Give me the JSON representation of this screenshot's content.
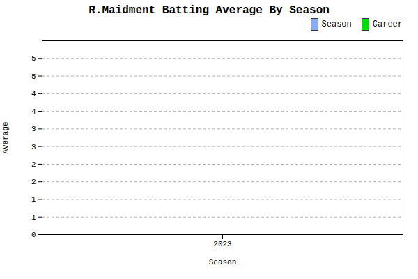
{
  "chart_data": {
    "type": "bar",
    "title": "R.Maidment Batting Average By Season",
    "xlabel": "Season",
    "ylabel": "Average",
    "series": [
      {
        "name": "Season",
        "color": "#88aaff"
      },
      {
        "name": "Career",
        "color": "#00dd00"
      }
    ],
    "xlim": [
      2022.6,
      2023.4
    ],
    "xticks": [
      2023
    ],
    "ylim": [
      0,
      5.5
    ],
    "yticks": [
      0,
      {
        "value": 0.5,
        "label": "1"
      },
      1,
      {
        "value": 1.5,
        "label": "2"
      },
      2,
      {
        "value": 2.5,
        "label": "3"
      },
      3,
      {
        "value": 3.5,
        "label": "4"
      },
      4,
      {
        "value": 4.5,
        "label": "5"
      },
      5
    ],
    "grid": "y",
    "legend": "upper right"
  }
}
